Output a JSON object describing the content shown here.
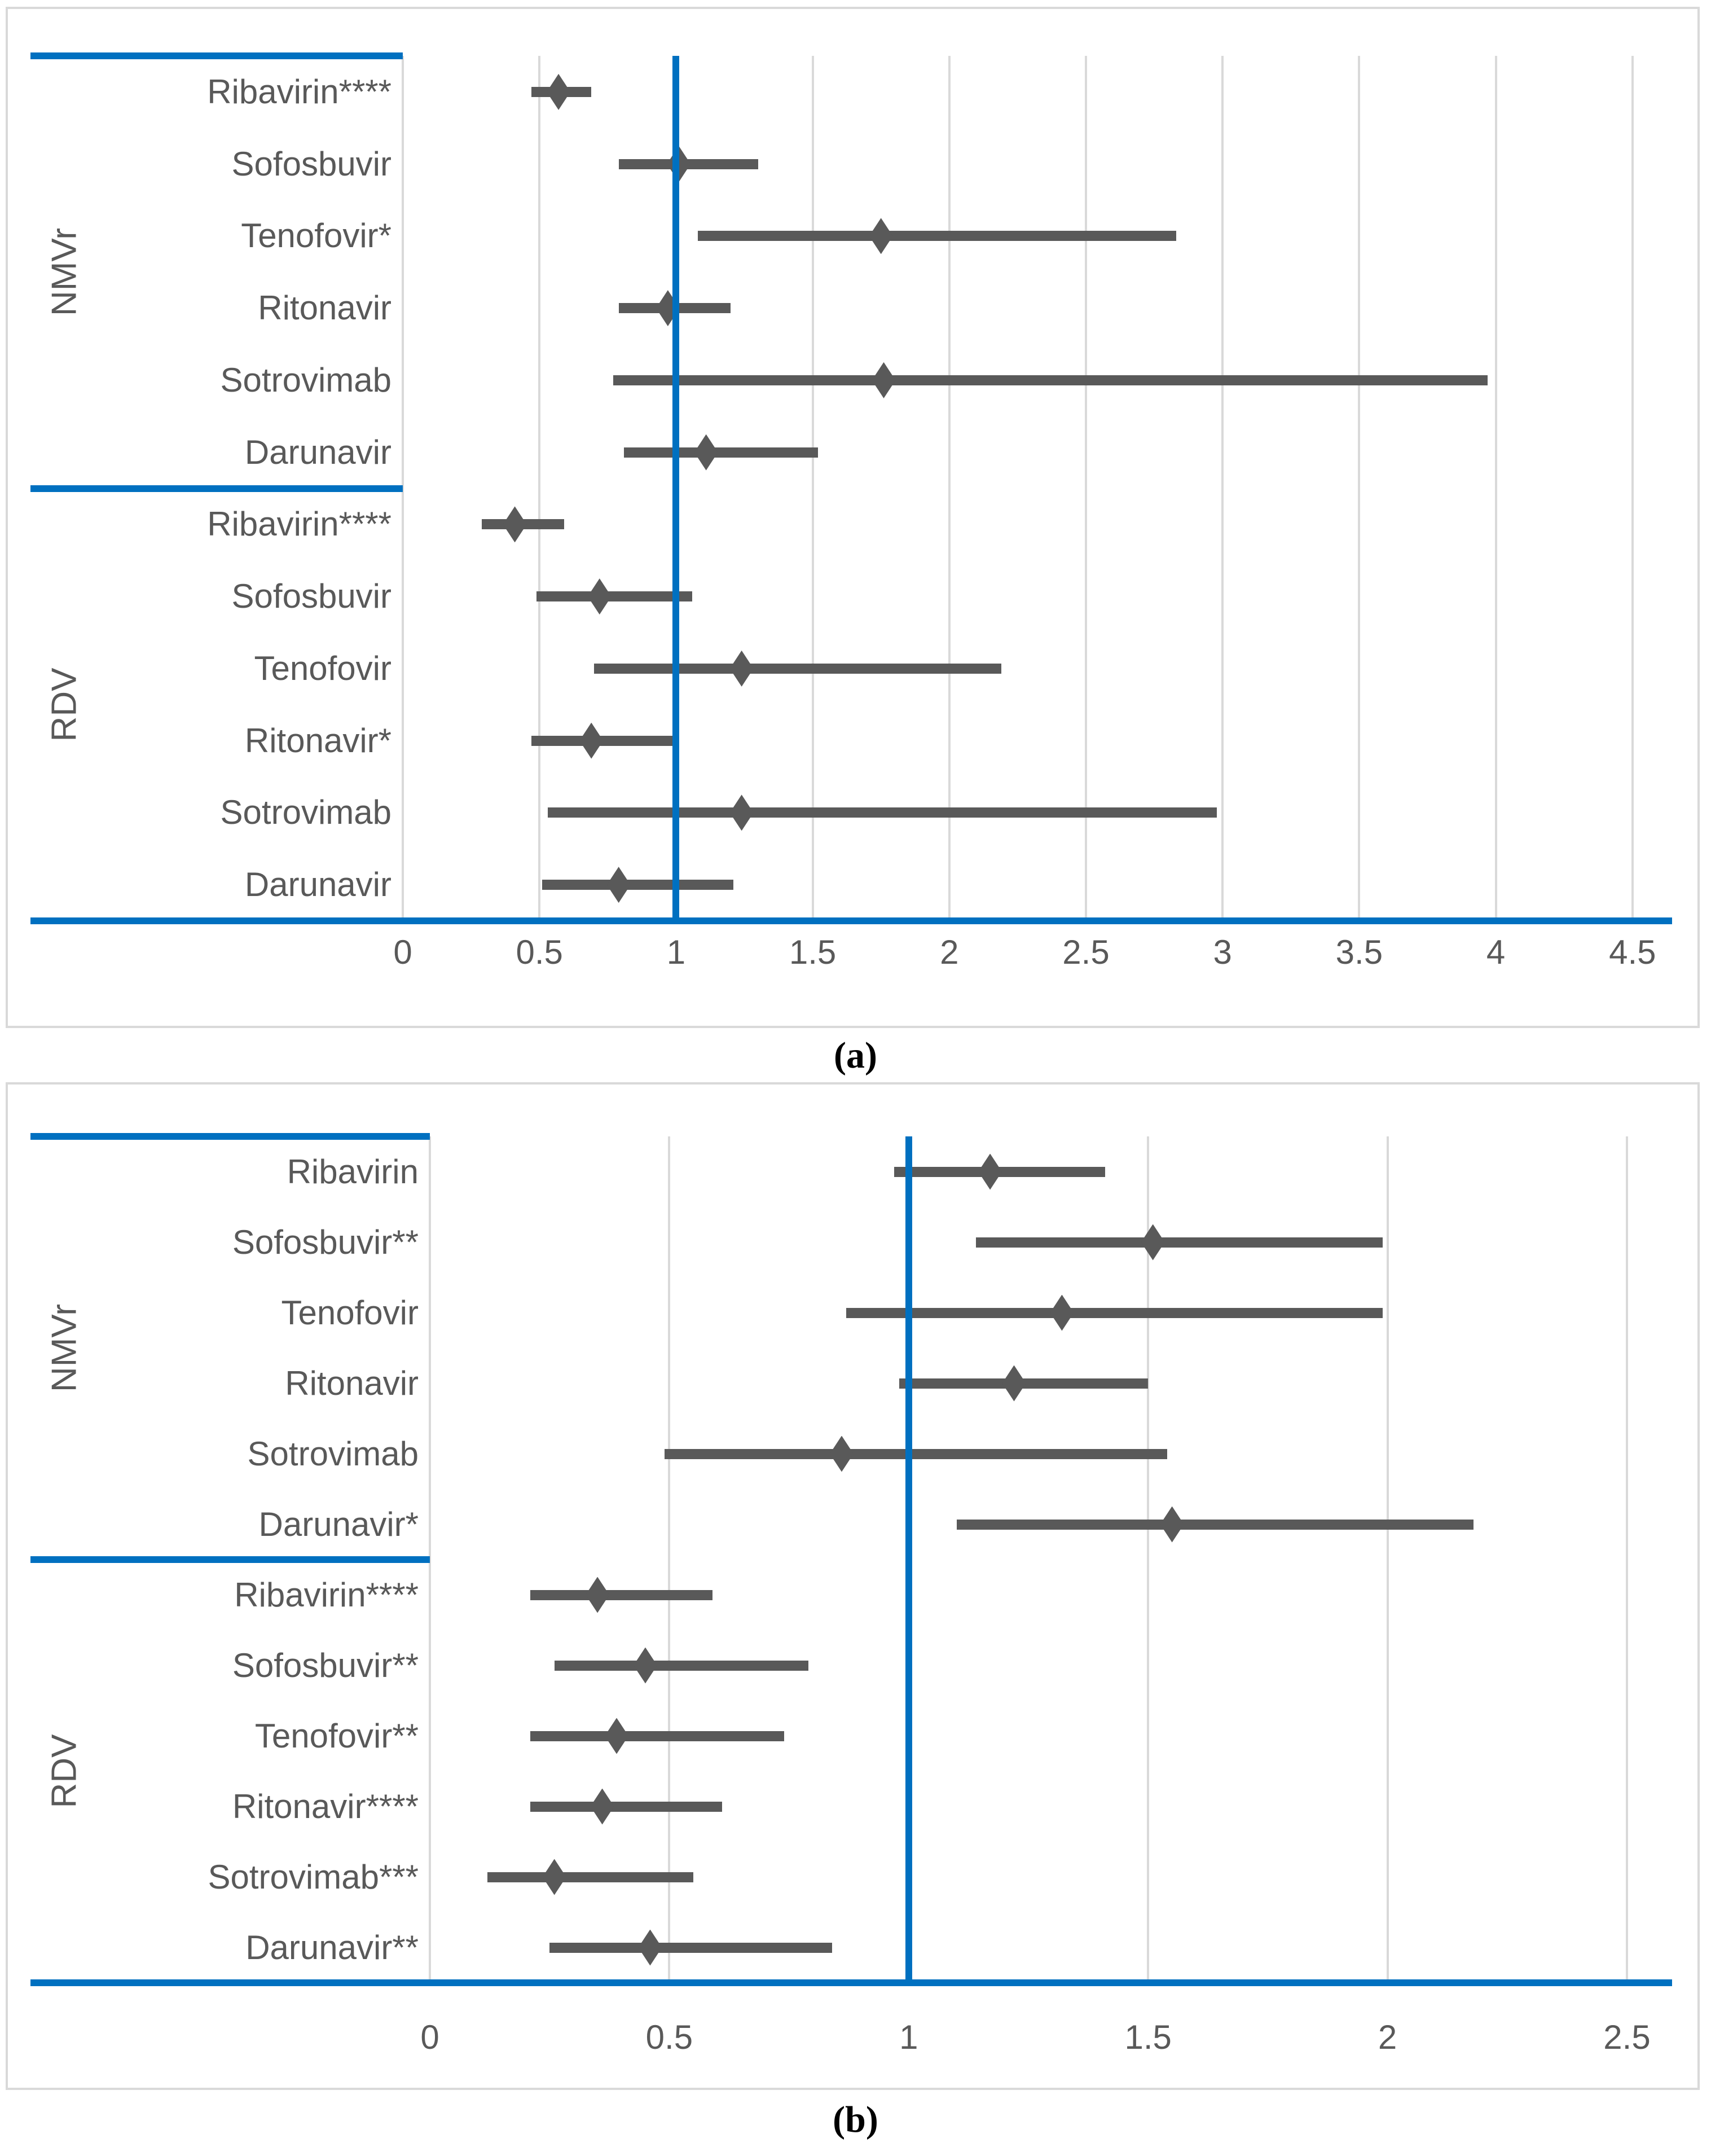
{
  "colors": {
    "accent_blue": "#0070C0",
    "marker_gray": "#595959",
    "gridline_gray": "#D9D9D9",
    "panel_border_gray": "#D9D9D9",
    "text_gray": "#595959"
  },
  "captions": {
    "a": "(a)",
    "b": "(b)"
  },
  "chart_data": [
    {
      "id": "a",
      "type": "scatter",
      "variant": "forest-plot",
      "caption": "(a)",
      "legend": "none",
      "grid": "vertical",
      "x_axis": {
        "min": 0,
        "max": 4.5,
        "ticks": [
          0,
          0.5,
          1,
          1.5,
          2,
          2.5,
          3,
          3.5,
          4,
          4.5
        ],
        "reference_line": 1
      },
      "groups": [
        {
          "name": "NMVr",
          "rows": [
            {
              "label": "Ribavirin****",
              "value": 0.57,
              "ci_low": 0.47,
              "ci_high": 0.69
            },
            {
              "label": "Sofosbuvir",
              "value": 1.01,
              "ci_low": 0.79,
              "ci_high": 1.3
            },
            {
              "label": "Tenofovir*",
              "value": 1.75,
              "ci_low": 1.08,
              "ci_high": 2.83
            },
            {
              "label": "Ritonavir",
              "value": 0.97,
              "ci_low": 0.79,
              "ci_high": 1.2
            },
            {
              "label": "Sotrovimab",
              "value": 1.76,
              "ci_low": 0.77,
              "ci_high": 3.97
            },
            {
              "label": "Darunavir",
              "value": 1.11,
              "ci_low": 0.81,
              "ci_high": 1.52
            }
          ]
        },
        {
          "name": "RDV",
          "rows": [
            {
              "label": "Ribavirin****",
              "value": 0.41,
              "ci_low": 0.29,
              "ci_high": 0.59
            },
            {
              "label": "Sofosbuvir",
              "value": 0.72,
              "ci_low": 0.49,
              "ci_high": 1.06
            },
            {
              "label": "Tenofovir",
              "value": 1.24,
              "ci_low": 0.7,
              "ci_high": 2.19
            },
            {
              "label": "Ritonavir*",
              "value": 0.69,
              "ci_low": 0.47,
              "ci_high": 1.0
            },
            {
              "label": "Sotrovimab",
              "value": 1.24,
              "ci_low": 0.53,
              "ci_high": 2.98
            },
            {
              "label": "Darunavir",
              "value": 0.79,
              "ci_low": 0.51,
              "ci_high": 1.21
            }
          ]
        }
      ]
    },
    {
      "id": "b",
      "type": "scatter",
      "variant": "forest-plot",
      "caption": "(b)",
      "legend": "none",
      "grid": "vertical",
      "x_axis": {
        "min": 0,
        "max": 2.5,
        "ticks": [
          0,
          0.5,
          1,
          1.5,
          2,
          2.5
        ],
        "reference_line": 1
      },
      "groups": [
        {
          "name": "NMVr",
          "rows": [
            {
              "label": "Ribavirin",
              "value": 1.17,
              "ci_low": 0.97,
              "ci_high": 1.41
            },
            {
              "label": "Sofosbuvir**",
              "value": 1.51,
              "ci_low": 1.14,
              "ci_high": 1.99
            },
            {
              "label": "Tenofovir",
              "value": 1.32,
              "ci_low": 0.87,
              "ci_high": 1.99
            },
            {
              "label": "Ritonavir",
              "value": 1.22,
              "ci_low": 0.98,
              "ci_high": 1.5
            },
            {
              "label": "Sotrovimab",
              "value": 0.86,
              "ci_low": 0.49,
              "ci_high": 1.54
            },
            {
              "label": "Darunavir*",
              "value": 1.55,
              "ci_low": 1.1,
              "ci_high": 2.18
            }
          ]
        },
        {
          "name": "RDV",
          "rows": [
            {
              "label": "Ribavirin****",
              "value": 0.35,
              "ci_low": 0.21,
              "ci_high": 0.59
            },
            {
              "label": "Sofosbuvir**",
              "value": 0.45,
              "ci_low": 0.26,
              "ci_high": 0.79
            },
            {
              "label": "Tenofovir**",
              "value": 0.39,
              "ci_low": 0.21,
              "ci_high": 0.74
            },
            {
              "label": "Ritonavir****",
              "value": 0.36,
              "ci_low": 0.21,
              "ci_high": 0.61
            },
            {
              "label": "Sotrovimab***",
              "value": 0.26,
              "ci_low": 0.12,
              "ci_high": 0.55
            },
            {
              "label": "Darunavir**",
              "value": 0.46,
              "ci_low": 0.25,
              "ci_high": 0.84
            }
          ]
        }
      ]
    }
  ]
}
